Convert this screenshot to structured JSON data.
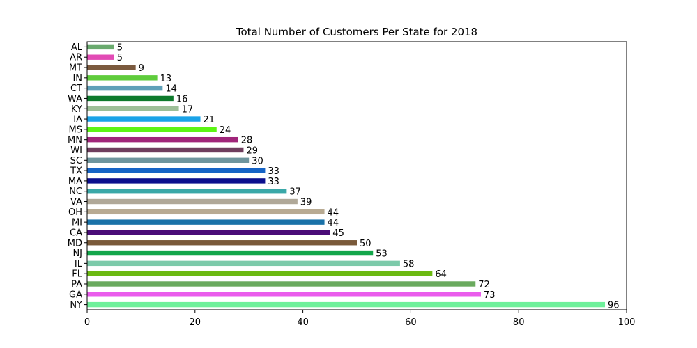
{
  "chart_data": {
    "type": "bar",
    "orientation": "horizontal",
    "title": "Total Number of Customers Per State for 2018",
    "xlabel": "",
    "ylabel": "",
    "xlim": [
      0,
      100
    ],
    "xticks": [
      0,
      20,
      40,
      60,
      80,
      100
    ],
    "grid": false,
    "categories": [
      "AL",
      "AR",
      "MT",
      "IN",
      "CT",
      "WA",
      "KY",
      "IA",
      "MS",
      "MN",
      "WI",
      "SC",
      "TX",
      "MA",
      "NC",
      "VA",
      "OH",
      "MI",
      "CA",
      "MD",
      "NJ",
      "IL",
      "FL",
      "PA",
      "GA",
      "NY"
    ],
    "values": [
      5,
      5,
      9,
      13,
      14,
      16,
      17,
      21,
      24,
      28,
      29,
      30,
      33,
      33,
      37,
      39,
      44,
      44,
      45,
      50,
      53,
      58,
      64,
      72,
      73,
      96
    ],
    "colors": [
      "#6aaa6e",
      "#e24bb5",
      "#7b5a3e",
      "#5fcc3c",
      "#5fa0b8",
      "#0d7a2c",
      "#9dbf98",
      "#1aa3e8",
      "#5cf514",
      "#a0257a",
      "#6e3e5e",
      "#6e959e",
      "#1664c6",
      "#0c0f8e",
      "#3aa8a8",
      "#b0a898",
      "#b8aa92",
      "#1a72a8",
      "#4a0c78",
      "#7a5a3a",
      "#12a64a",
      "#7ccaaa",
      "#6cba12",
      "#6aaa5e",
      "#ea5cec",
      "#6ef09a"
    ]
  }
}
